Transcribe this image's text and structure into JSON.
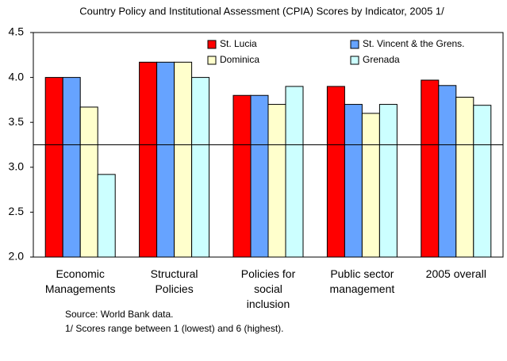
{
  "chart_data": {
    "type": "bar",
    "title": "Country Policy and Institutional Assessment (CPIA) Scores by Indicator, 2005 1/",
    "categories": [
      "Economic\nManagements",
      "Structural\nPolicies",
      "Policies for\nsocial\ninclusion",
      "Public sector\nmanagement",
      "2005 overall"
    ],
    "series": [
      {
        "name": "St. Lucia",
        "color": "#ff0000",
        "values": [
          4.0,
          4.17,
          3.8,
          3.9,
          3.97
        ]
      },
      {
        "name": "St. Vincent & the Grens.",
        "color": "#66a3ff",
        "values": [
          4.0,
          4.17,
          3.8,
          3.7,
          3.91
        ]
      },
      {
        "name": "Dominica",
        "color": "#ffffcc",
        "values": [
          3.67,
          4.17,
          3.7,
          3.6,
          3.78
        ]
      },
      {
        "name": "Grenada",
        "color": "#ccffff",
        "values": [
          2.92,
          4.0,
          3.9,
          3.7,
          3.69
        ]
      }
    ],
    "ylim": [
      2.0,
      4.5
    ],
    "yticks": [
      {
        "value": 2.0,
        "label": "2.0"
      },
      2.5,
      {
        "value": 3.0,
        "label": "3.0"
      },
      3.5,
      {
        "value": 4.0,
        "label": "4.0"
      },
      4.5
    ],
    "reference_line": 3.25,
    "legend": "top",
    "notes": [
      "Source: World Bank data.",
      "1/ Scores range between 1 (lowest) and 6 (highest)."
    ]
  }
}
